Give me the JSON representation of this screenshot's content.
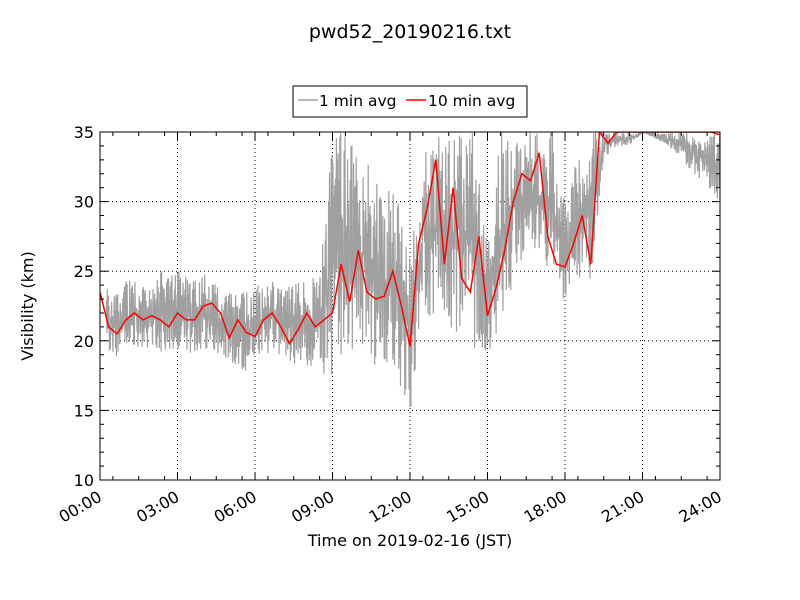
{
  "chart_data": {
    "type": "line",
    "title": "pwd52_20190216.txt",
    "xlabel": "Time on 2019-02-16 (JST)",
    "ylabel": "Visibility (km)",
    "xlim": [
      "00:00",
      "24:00"
    ],
    "ylim": [
      10,
      35
    ],
    "x_ticks": [
      "00:00",
      "03:00",
      "06:00",
      "09:00",
      "12:00",
      "15:00",
      "18:00",
      "21:00",
      "24:00"
    ],
    "y_ticks": [
      10,
      15,
      20,
      25,
      30,
      35
    ],
    "grid": true,
    "legend_position": "top-center, above plot",
    "series": [
      {
        "name": "1 min avg",
        "color": "#a0a0a0",
        "style": "noisy band",
        "x": [
          "00:00",
          "00:30",
          "01:00",
          "01:30",
          "02:00",
          "02:30",
          "03:00",
          "03:30",
          "04:00",
          "04:30",
          "05:00",
          "05:30",
          "06:00",
          "06:30",
          "07:00",
          "07:30",
          "08:00",
          "08:30",
          "09:00",
          "09:30",
          "10:00",
          "10:30",
          "11:00",
          "11:30",
          "12:00",
          "12:30",
          "13:00",
          "13:30",
          "14:00",
          "14:30",
          "15:00",
          "15:30",
          "16:00",
          "16:30",
          "17:00",
          "17:30",
          "18:00",
          "18:30",
          "19:00",
          "19:30",
          "20:00",
          "20:30",
          "21:00",
          "22:00",
          "23:00",
          "24:00"
        ],
        "low": [
          20.0,
          18.5,
          19.5,
          19.5,
          19.5,
          19.0,
          19.5,
          19.0,
          19.5,
          19.0,
          18.5,
          17.5,
          18.5,
          19.0,
          19.0,
          18.0,
          18.0,
          17.5,
          17.5,
          18.5,
          18.5,
          17.5,
          18.5,
          17.5,
          14.0,
          22.0,
          20.5,
          21.0,
          20.0,
          18.5,
          18.5,
          21.0,
          23.5,
          27.0,
          26.0,
          24.5,
          22.5,
          24.5,
          24.0,
          33.0,
          34.0,
          34.0,
          35.0,
          34.0,
          32.0,
          30.0
        ],
        "high": [
          24.5,
          23.5,
          24.5,
          24.5,
          24.0,
          25.5,
          25.5,
          24.5,
          25.5,
          24.0,
          23.5,
          23.5,
          24.0,
          24.5,
          24.0,
          24.0,
          24.5,
          25.0,
          35.0,
          35.0,
          35.0,
          33.0,
          31.0,
          30.5,
          26.0,
          35.0,
          35.0,
          35.0,
          35.0,
          35.0,
          30.0,
          35.0,
          35.0,
          35.0,
          35.0,
          35.0,
          30.0,
          34.0,
          35.0,
          35.0,
          35.0,
          35.0,
          35.0,
          35.0,
          35.0,
          35.0
        ]
      },
      {
        "name": "10 min avg",
        "color": "#ff0000",
        "x": [
          "00:00",
          "00:20",
          "00:40",
          "01:00",
          "01:20",
          "01:40",
          "02:00",
          "02:20",
          "02:40",
          "03:00",
          "03:20",
          "03:40",
          "04:00",
          "04:20",
          "04:40",
          "05:00",
          "05:20",
          "05:40",
          "06:00",
          "06:20",
          "06:40",
          "07:00",
          "07:20",
          "07:40",
          "08:00",
          "08:20",
          "08:40",
          "09:00",
          "09:20",
          "09:40",
          "10:00",
          "10:20",
          "10:40",
          "11:00",
          "11:20",
          "11:40",
          "12:00",
          "12:20",
          "12:40",
          "13:00",
          "13:20",
          "13:40",
          "14:00",
          "14:20",
          "14:40",
          "15:00",
          "15:20",
          "15:40",
          "16:00",
          "16:20",
          "16:40",
          "17:00",
          "17:20",
          "17:40",
          "18:00",
          "18:20",
          "18:40",
          "19:00",
          "19:20",
          "19:40",
          "20:00",
          "20:20",
          "23:40",
          "24:00"
        ],
        "y": [
          23.5,
          21.0,
          20.5,
          21.5,
          22.0,
          21.5,
          21.8,
          21.5,
          21.0,
          22.0,
          21.5,
          21.5,
          22.5,
          22.7,
          22.0,
          20.2,
          21.5,
          20.6,
          20.3,
          21.5,
          22.0,
          21.0,
          19.8,
          20.8,
          22.0,
          21.0,
          21.5,
          22.0,
          25.5,
          22.8,
          26.5,
          23.5,
          23.0,
          23.2,
          25.0,
          22.5,
          19.6,
          27.0,
          29.5,
          33.0,
          25.5,
          31.0,
          24.5,
          23.5,
          27.5,
          21.8,
          23.8,
          26.5,
          30.0,
          32.0,
          31.5,
          33.5,
          27.5,
          25.5,
          25.3,
          27.0,
          29.0,
          25.5,
          35.0,
          34.2,
          35.0,
          35.0,
          35.0,
          34.8
        ]
      }
    ]
  }
}
